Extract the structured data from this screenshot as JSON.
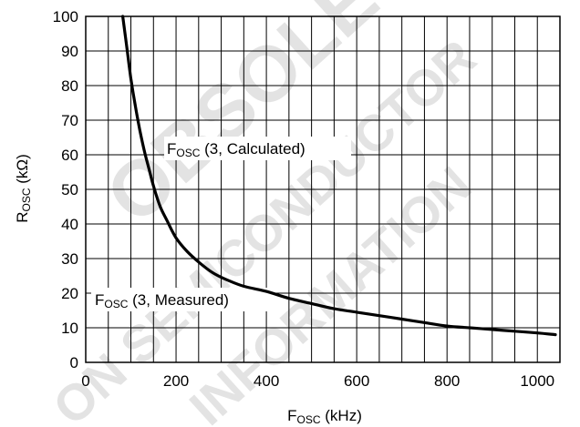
{
  "chart_data": {
    "type": "line",
    "xlabel": "FOSC (kHz)",
    "ylabel": "ROSC (kΩ)",
    "xlim": [
      0,
      1050
    ],
    "ylim": [
      0,
      100
    ],
    "x_ticks": [
      0,
      200,
      400,
      600,
      800,
      1000
    ],
    "y_ticks": [
      0,
      10,
      20,
      30,
      40,
      50,
      60,
      70,
      80,
      90,
      100
    ],
    "grid": true,
    "series": [
      {
        "name": "",
        "x": [
          82,
          90,
          100,
          110,
          120,
          130,
          140,
          150,
          165,
          180,
          200,
          225,
          250,
          280,
          310,
          350,
          400,
          450,
          500,
          550,
          600,
          650,
          700,
          750,
          800,
          850,
          900,
          950,
          1000,
          1040
        ],
        "y": [
          100,
          92,
          82,
          74,
          67,
          61,
          56,
          51,
          45,
          41,
          36,
          32,
          29,
          26,
          24,
          22,
          20.5,
          18.5,
          17,
          15.5,
          14.5,
          13.5,
          12.5,
          11.5,
          10.5,
          10,
          9.5,
          9,
          8.5,
          8
        ]
      }
    ],
    "annotations": [
      {
        "main": "F",
        "sub": "OSC",
        "rest": " (3, Calculated)"
      },
      {
        "main": "F",
        "sub": "OSC",
        "rest": " (3, Measured)"
      }
    ],
    "watermark": [
      "OBSOLETE",
      "ON SEMICONDUCTOR",
      "INFORMATION"
    ]
  }
}
